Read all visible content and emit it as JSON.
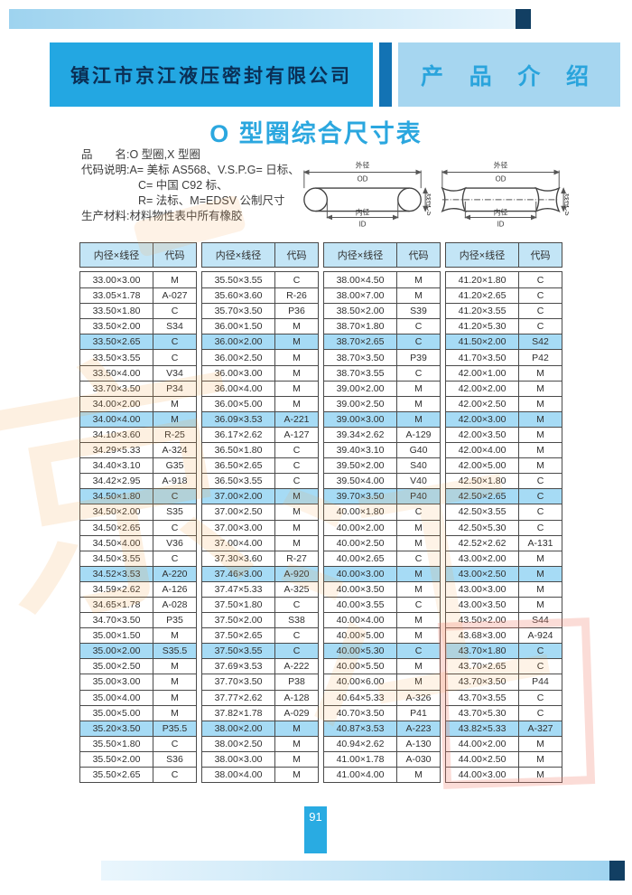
{
  "header": {
    "company": "镇江市京江液压密封有限公司",
    "section": "产 品 介 绍"
  },
  "title": "O 型圈综合尺寸表",
  "info": {
    "lines": [
      "品　　名:O 型圈,X 型圈",
      "代码说明:A= 美标 AS568、V.S.P.G= 日标、",
      "C= 中国 C92 标、",
      "R= 法标、M=EDSV 公制尺寸",
      "生产材料:材料物性表中所有橡胶"
    ]
  },
  "diagram": {
    "od_cn": "外径",
    "od": "OD",
    "id_cn": "内径",
    "id": "ID",
    "cs_cn": "线径",
    "cs": "CS"
  },
  "colors": {
    "accent_blue": "#29abe2",
    "light_blue": "#a6d6f0",
    "table_header_bg": "#c3e5f6",
    "row_highlight_bg": "#a6dbf5"
  },
  "tables": {
    "col_headers": [
      "内径×线径",
      "代码"
    ],
    "columns": [
      [
        [
          "33.00×3.00",
          "M"
        ],
        [
          "33.05×1.78",
          "A-027"
        ],
        [
          "33.50×1.80",
          "C"
        ],
        [
          "33.50×2.00",
          "S34"
        ],
        [
          "33.50×2.65",
          "C"
        ],
        [
          "33.50×3.55",
          "C"
        ],
        [
          "33.50×4.00",
          "V34"
        ],
        [
          "33.70×3.50",
          "P34"
        ],
        [
          "34.00×2.00",
          "M"
        ],
        [
          "34.00×4.00",
          "M"
        ],
        [
          "34.10×3.60",
          "R-25"
        ],
        [
          "34.29×5.33",
          "A-324"
        ],
        [
          "34.40×3.10",
          "G35"
        ],
        [
          "34.42×2.95",
          "A-918"
        ],
        [
          "34.50×1.80",
          "C"
        ],
        [
          "34.50×2.00",
          "S35"
        ],
        [
          "34.50×2.65",
          "C"
        ],
        [
          "34.50×4.00",
          "V36"
        ],
        [
          "34.50×3.55",
          "C"
        ],
        [
          "34.52×3.53",
          "A-220"
        ],
        [
          "34.59×2.62",
          "A-126"
        ],
        [
          "34.65×1.78",
          "A-028"
        ],
        [
          "34.70×3.50",
          "P35"
        ],
        [
          "35.00×1.50",
          "M"
        ],
        [
          "35.00×2.00",
          "S35.5"
        ],
        [
          "35.00×2.50",
          "M"
        ],
        [
          "35.00×3.00",
          "M"
        ],
        [
          "35.00×4.00",
          "M"
        ],
        [
          "35.00×5.00",
          "M"
        ],
        [
          "35.20×3.50",
          "P35.5"
        ],
        [
          "35.50×1.80",
          "C"
        ],
        [
          "35.50×2.00",
          "S36"
        ],
        [
          "35.50×2.65",
          "C"
        ]
      ],
      [
        [
          "35.50×3.55",
          "C"
        ],
        [
          "35.60×3.60",
          "R-26"
        ],
        [
          "35.70×3.50",
          "P36"
        ],
        [
          "36.00×1.50",
          "M"
        ],
        [
          "36.00×2.00",
          "M"
        ],
        [
          "36.00×2.50",
          "M"
        ],
        [
          "36.00×3.00",
          "M"
        ],
        [
          "36.00×4.00",
          "M"
        ],
        [
          "36.00×5.00",
          "M"
        ],
        [
          "36.09×3.53",
          "A-221"
        ],
        [
          "36.17×2.62",
          "A-127"
        ],
        [
          "36.50×1.80",
          "C"
        ],
        [
          "36.50×2.65",
          "C"
        ],
        [
          "36.50×3.55",
          "C"
        ],
        [
          "37.00×2.00",
          "M"
        ],
        [
          "37.00×2.50",
          "M"
        ],
        [
          "37.00×3.00",
          "M"
        ],
        [
          "37.00×4.00",
          "M"
        ],
        [
          "37.30×3.60",
          "R-27"
        ],
        [
          "37.46×3.00",
          "A-920"
        ],
        [
          "37.47×5.33",
          "A-325"
        ],
        [
          "37.50×1.80",
          "C"
        ],
        [
          "37.50×2.00",
          "S38"
        ],
        [
          "37.50×2.65",
          "C"
        ],
        [
          "37.50×3.55",
          "C"
        ],
        [
          "37.69×3.53",
          "A-222"
        ],
        [
          "37.70×3.50",
          "P38"
        ],
        [
          "37.77×2.62",
          "A-128"
        ],
        [
          "37.82×1.78",
          "A-029"
        ],
        [
          "38.00×2.00",
          "M"
        ],
        [
          "38.00×2.50",
          "M"
        ],
        [
          "38.00×3.00",
          "M"
        ],
        [
          "38.00×4.00",
          "M"
        ]
      ],
      [
        [
          "38.00×4.50",
          "M"
        ],
        [
          "38.00×7.00",
          "M"
        ],
        [
          "38.50×2.00",
          "S39"
        ],
        [
          "38.70×1.80",
          "C"
        ],
        [
          "38.70×2.65",
          "C"
        ],
        [
          "38.70×3.50",
          "P39"
        ],
        [
          "38.70×3.55",
          "C"
        ],
        [
          "39.00×2.00",
          "M"
        ],
        [
          "39.00×2.50",
          "M"
        ],
        [
          "39.00×3.00",
          "M"
        ],
        [
          "39.34×2.62",
          "A-129"
        ],
        [
          "39.40×3.10",
          "G40"
        ],
        [
          "39.50×2.00",
          "S40"
        ],
        [
          "39.50×4.00",
          "V40"
        ],
        [
          "39.70×3.50",
          "P40"
        ],
        [
          "40.00×1.80",
          "C"
        ],
        [
          "40.00×2.00",
          "M"
        ],
        [
          "40.00×2.50",
          "M"
        ],
        [
          "40.00×2.65",
          "C"
        ],
        [
          "40.00×3.00",
          "M"
        ],
        [
          "40.00×3.50",
          "M"
        ],
        [
          "40.00×3.55",
          "C"
        ],
        [
          "40.00×4.00",
          "M"
        ],
        [
          "40.00×5.00",
          "M"
        ],
        [
          "40.00×5.30",
          "C"
        ],
        [
          "40.00×5.50",
          "M"
        ],
        [
          "40.00×6.00",
          "M"
        ],
        [
          "40.64×5.33",
          "A-326"
        ],
        [
          "40.70×3.50",
          "P41"
        ],
        [
          "40.87×3.53",
          "A-223"
        ],
        [
          "40.94×2.62",
          "A-130"
        ],
        [
          "41.00×1.78",
          "A-030"
        ],
        [
          "41.00×4.00",
          "M"
        ]
      ],
      [
        [
          "41.20×1.80",
          "C"
        ],
        [
          "41.20×2.65",
          "C"
        ],
        [
          "41.20×3.55",
          "C"
        ],
        [
          "41.20×5.30",
          "C"
        ],
        [
          "41.50×2.00",
          "S42"
        ],
        [
          "41.70×3.50",
          "P42"
        ],
        [
          "42.00×1.00",
          "M"
        ],
        [
          "42.00×2.00",
          "M"
        ],
        [
          "42.00×2.50",
          "M"
        ],
        [
          "42.00×3.00",
          "M"
        ],
        [
          "42.00×3.50",
          "M"
        ],
        [
          "42.00×4.00",
          "M"
        ],
        [
          "42.00×5.00",
          "M"
        ],
        [
          "42.50×1.80",
          "C"
        ],
        [
          "42.50×2.65",
          "C"
        ],
        [
          "42.50×3.55",
          "C"
        ],
        [
          "42.50×5.30",
          "C"
        ],
        [
          "42.52×2.62",
          "A-131"
        ],
        [
          "43.00×2.00",
          "M"
        ],
        [
          "43.00×2.50",
          "M"
        ],
        [
          "43.00×3.00",
          "M"
        ],
        [
          "43.00×3.50",
          "M"
        ],
        [
          "43.50×2.00",
          "S44"
        ],
        [
          "43.68×3.00",
          "A-924"
        ],
        [
          "43.70×1.80",
          "C"
        ],
        [
          "43.70×2.65",
          "C"
        ],
        [
          "43.70×3.50",
          "P44"
        ],
        [
          "43.70×3.55",
          "C"
        ],
        [
          "43.70×5.30",
          "C"
        ],
        [
          "43.82×5.33",
          "A-327"
        ],
        [
          "44.00×2.00",
          "M"
        ],
        [
          "44.00×2.50",
          "M"
        ],
        [
          "44.00×3.00",
          "M"
        ]
      ]
    ]
  },
  "page_number": "91"
}
